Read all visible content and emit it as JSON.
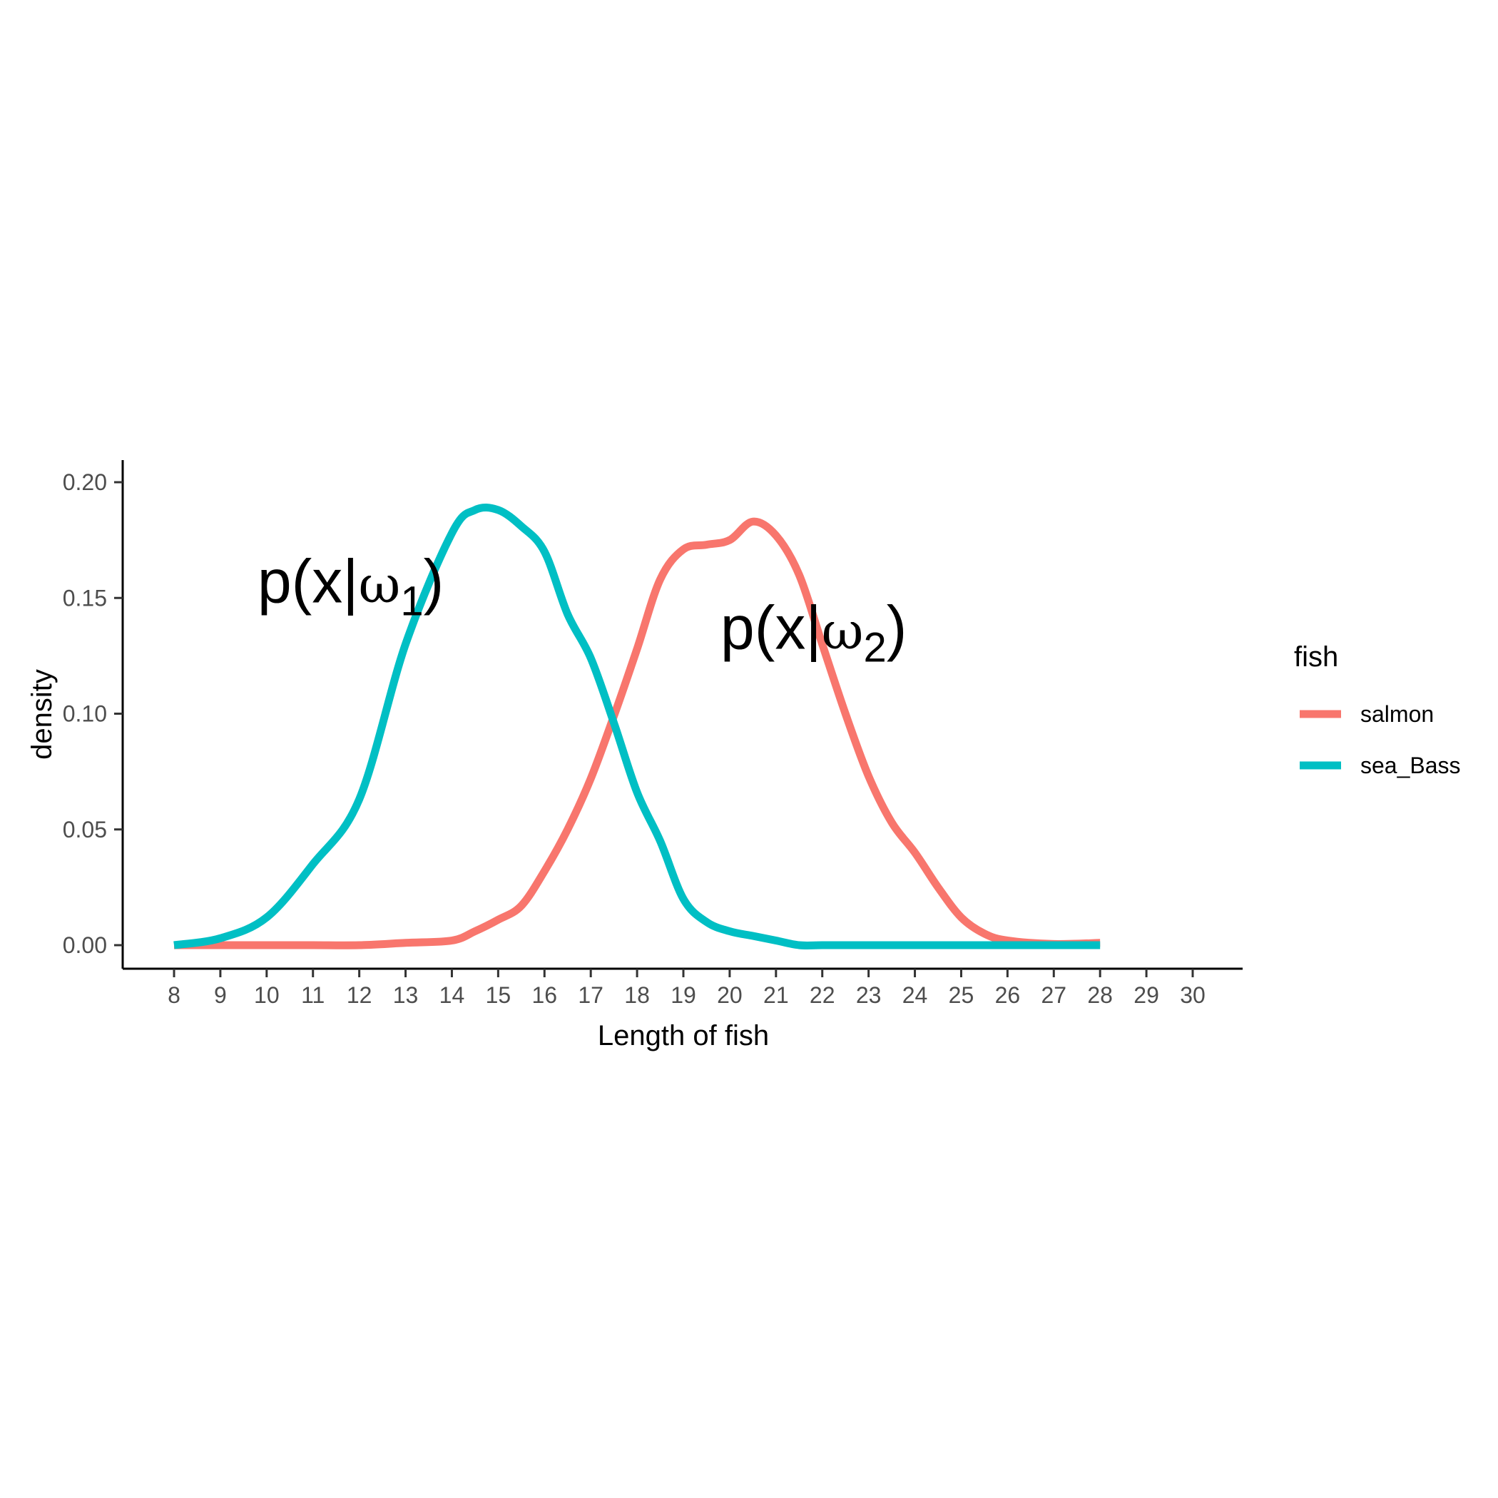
{
  "chart_data": {
    "type": "line",
    "title": "",
    "xlabel": "Length of fish",
    "ylabel": "density",
    "xlim": [
      8,
      30
    ],
    "ylim": [
      0,
      0.2
    ],
    "x_ticks": [
      8,
      9,
      10,
      11,
      12,
      13,
      14,
      15,
      16,
      17,
      18,
      19,
      20,
      21,
      22,
      23,
      24,
      25,
      26,
      27,
      28,
      29,
      30
    ],
    "y_ticks": [
      "0.00",
      "0.05",
      "0.10",
      "0.15",
      "0.20"
    ],
    "grid": false,
    "legend": {
      "title": "fish",
      "position": "right"
    },
    "x": [
      8,
      9,
      10,
      11,
      12,
      13,
      14,
      14.5,
      15,
      15.5,
      16,
      16.5,
      17,
      17.5,
      18,
      18.5,
      19,
      19.5,
      20,
      20.5,
      21,
      21.5,
      22,
      22.5,
      23,
      23.5,
      24,
      24.5,
      25,
      25.5,
      26,
      27,
      28
    ],
    "series": [
      {
        "name": "salmon",
        "color": "#F8766D",
        "values": [
          0.0,
          0.0,
          0.0,
          0.0,
          0.0,
          0.001,
          0.002,
          0.006,
          0.011,
          0.017,
          0.032,
          0.05,
          0.072,
          0.099,
          0.128,
          0.158,
          0.171,
          0.173,
          0.175,
          0.183,
          0.177,
          0.16,
          0.13,
          0.1,
          0.073,
          0.053,
          0.04,
          0.025,
          0.012,
          0.005,
          0.002,
          0.0005,
          0.001
        ]
      },
      {
        "name": "sea_Bass",
        "color": "#00BFC4",
        "values": [
          0.0,
          0.003,
          0.012,
          0.035,
          0.063,
          0.13,
          0.178,
          0.188,
          0.188,
          0.181,
          0.17,
          0.143,
          0.124,
          0.096,
          0.066,
          0.045,
          0.02,
          0.01,
          0.006,
          0.004,
          0.002,
          0.0,
          0.0,
          0.0,
          0.0,
          0.0,
          0.0,
          0.0,
          0.0,
          0.0,
          0.0,
          0.0,
          0.0
        ]
      }
    ],
    "annotations": [
      {
        "base": "p(x|",
        "greek": "ω",
        "sub": "1",
        "close": ")",
        "x": 9.8,
        "y": 0.148
      },
      {
        "base": "p(x|",
        "greek": "ω",
        "sub": "2",
        "close": ")",
        "x": 19.8,
        "y": 0.128
      }
    ]
  }
}
